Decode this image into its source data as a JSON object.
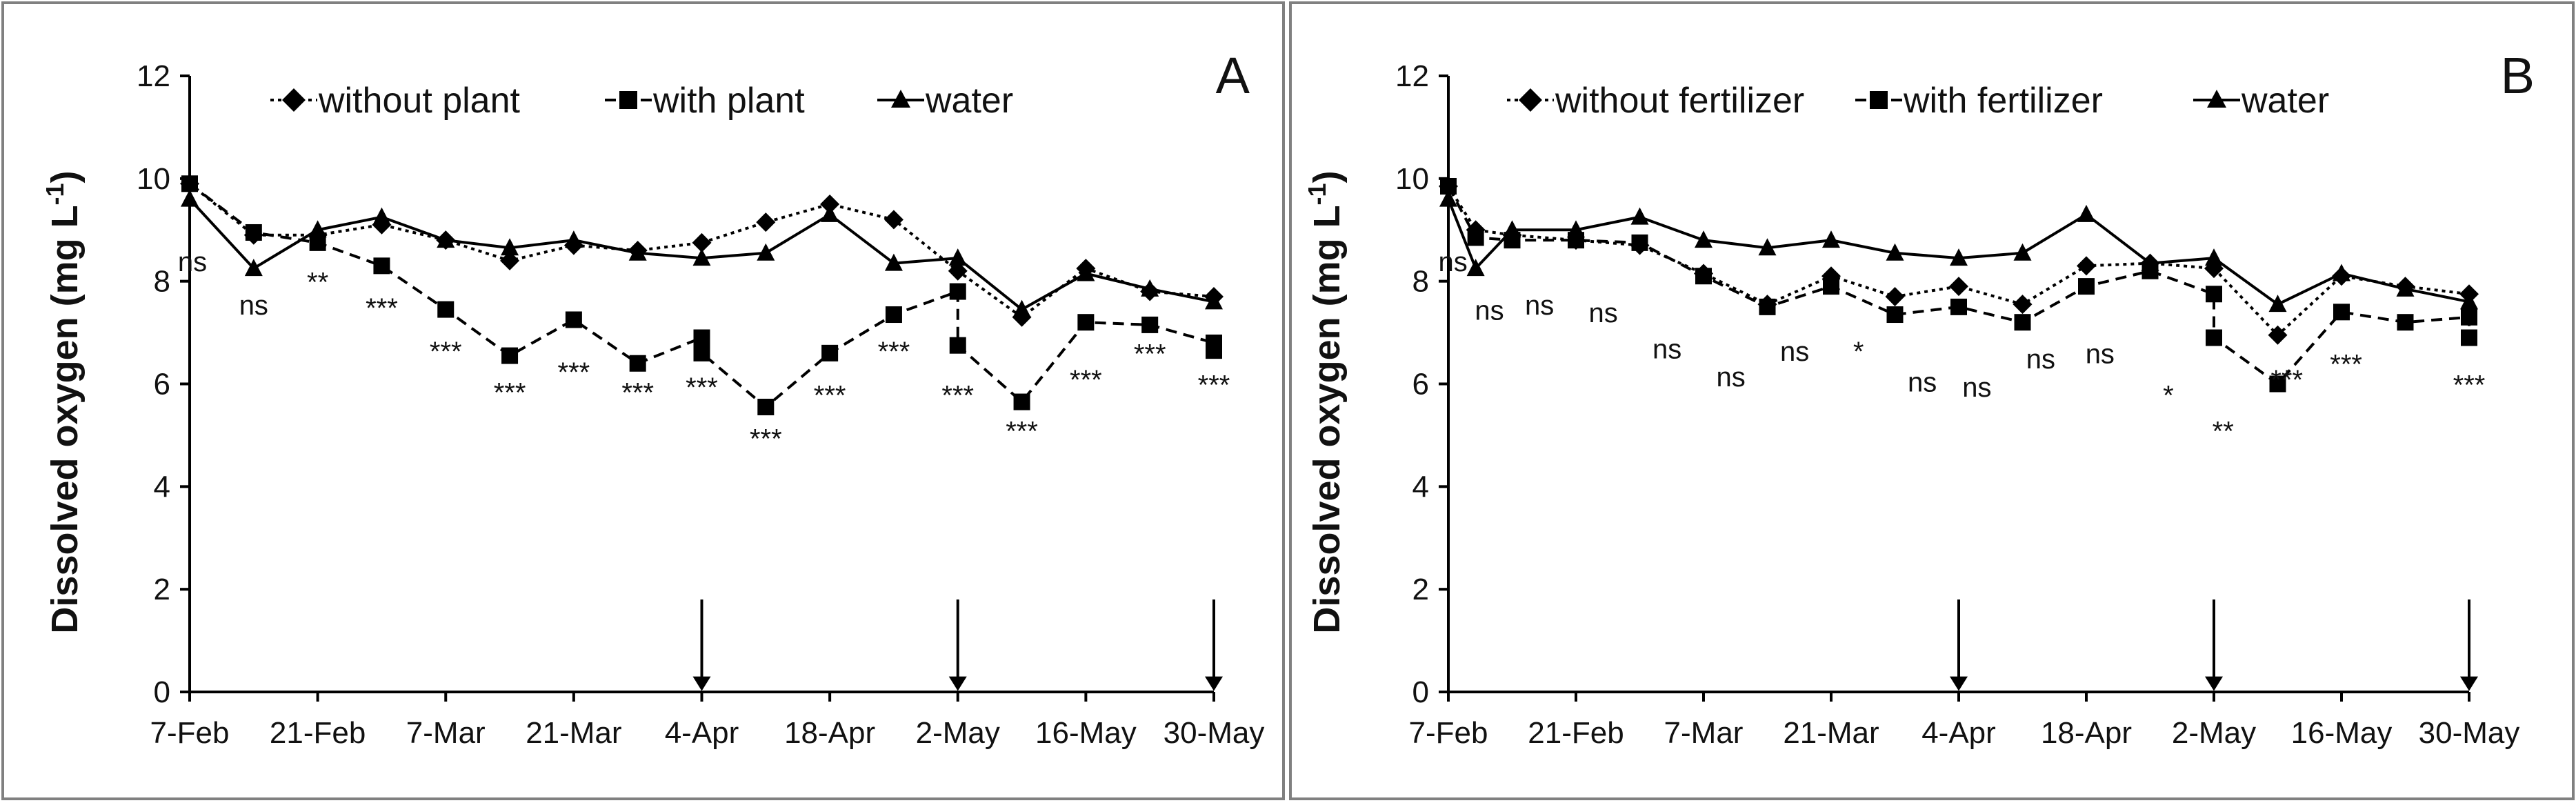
{
  "colors": {
    "line": "#000000",
    "frame": "#808080",
    "background": "#ffffff"
  },
  "chart_data": [
    {
      "type": "line",
      "panel": "A",
      "title": "",
      "ylabel": "Dissolved oxygen (mg L",
      "ylabel_sup": "-1",
      "ylabel_close": ")",
      "xlabel": "",
      "ylim": [
        0,
        12
      ],
      "yticks": [
        "0",
        "2",
        "4",
        "6",
        "8",
        "10",
        "12"
      ],
      "x_range": [
        0,
        112
      ],
      "xtick_labels": [
        "7-Feb",
        "21-Feb",
        "7-Mar",
        "21-Mar",
        "4-Apr",
        "18-Apr",
        "2-May",
        "16-May",
        "30-May"
      ],
      "xtick_days": [
        0,
        14,
        28,
        42,
        56,
        70,
        84,
        98,
        112
      ],
      "arrows_at_days": [
        56,
        84,
        112
      ],
      "legend": [
        "without plant",
        "with plant",
        "water"
      ],
      "legend_position": "top",
      "series": [
        {
          "name": "without plant",
          "marker": "diamond",
          "dash": "dotted",
          "x": [
            0,
            7,
            14,
            21,
            28,
            35,
            42,
            49,
            56,
            63,
            70,
            77,
            84,
            91,
            98,
            105,
            112
          ],
          "y": [
            9.9,
            8.9,
            8.9,
            9.1,
            8.8,
            8.4,
            8.7,
            8.6,
            8.75,
            9.15,
            9.5,
            9.2,
            8.2,
            7.3,
            8.25,
            7.8,
            7.7
          ]
        },
        {
          "name": "with plant",
          "marker": "square",
          "dash": "dashed",
          "x": [
            0,
            7,
            14,
            21,
            28,
            35,
            42,
            49,
            56,
            56,
            63,
            70,
            77,
            84,
            84,
            91,
            98,
            105,
            112,
            112
          ],
          "y": [
            9.9,
            8.95,
            8.75,
            8.3,
            7.45,
            6.55,
            7.25,
            6.4,
            6.9,
            6.6,
            5.55,
            6.6,
            7.35,
            7.8,
            6.75,
            5.65,
            7.2,
            7.15,
            6.8,
            6.65
          ]
        },
        {
          "name": "water",
          "marker": "triangle",
          "dash": "solid",
          "x": [
            0,
            7,
            14,
            21,
            28,
            35,
            42,
            49,
            56,
            63,
            70,
            77,
            84,
            91,
            98,
            105,
            112
          ],
          "y": [
            9.6,
            8.25,
            9.0,
            9.25,
            8.8,
            8.65,
            8.8,
            8.55,
            8.45,
            8.55,
            9.3,
            8.35,
            8.45,
            7.45,
            8.15,
            7.85,
            7.6
          ]
        }
      ],
      "annotations": [
        {
          "text": "ns",
          "x": 0.3,
          "y": 8.2
        },
        {
          "text": "ns",
          "x": 7,
          "y": 7.35
        },
        {
          "text": "**",
          "x": 14,
          "y": 7.8
        },
        {
          "text": "***",
          "x": 21,
          "y": 7.3
        },
        {
          "text": "***",
          "x": 28,
          "y": 6.45
        },
        {
          "text": "***",
          "x": 35,
          "y": 5.65
        },
        {
          "text": "***",
          "x": 42,
          "y": 6.05
        },
        {
          "text": "***",
          "x": 49,
          "y": 5.65
        },
        {
          "text": "***",
          "x": 56,
          "y": 5.75
        },
        {
          "text": "***",
          "x": 63,
          "y": 4.75
        },
        {
          "text": "***",
          "x": 70,
          "y": 5.6
        },
        {
          "text": "***",
          "x": 77,
          "y": 6.45
        },
        {
          "text": "***",
          "x": 84,
          "y": 5.6
        },
        {
          "text": "***",
          "x": 91,
          "y": 4.9
        },
        {
          "text": "***",
          "x": 98,
          "y": 5.9
        },
        {
          "text": "***",
          "x": 105,
          "y": 6.4
        },
        {
          "text": "***",
          "x": 112,
          "y": 5.8
        }
      ]
    },
    {
      "type": "line",
      "panel": "B",
      "title": "",
      "ylabel": "Dissolved oxygen (mg L",
      "ylabel_sup": "-1",
      "ylabel_close": ")",
      "xlabel": "",
      "ylim": [
        0,
        12
      ],
      "yticks": [
        "0",
        "2",
        "4",
        "6",
        "8",
        "10",
        "12"
      ],
      "x_range": [
        0,
        112
      ],
      "xtick_labels": [
        "7-Feb",
        "21-Feb",
        "7-Mar",
        "21-Mar",
        "4-Apr",
        "18-Apr",
        "2-May",
        "16-May",
        "30-May"
      ],
      "xtick_days": [
        0,
        14,
        28,
        42,
        56,
        70,
        84,
        98,
        112
      ],
      "arrows_at_days": [
        56,
        84,
        112
      ],
      "legend": [
        "without fertilizer",
        "with fertilizer",
        "water"
      ],
      "legend_position": "top",
      "series": [
        {
          "name": "without fertilizer",
          "marker": "diamond",
          "dash": "dotted",
          "x": [
            0,
            3,
            7,
            14,
            21,
            28,
            35,
            42,
            49,
            56,
            63,
            70,
            77,
            84,
            91,
            98,
            105,
            112
          ],
          "y": [
            9.85,
            9.0,
            8.9,
            8.8,
            8.7,
            8.15,
            7.55,
            8.1,
            7.7,
            7.9,
            7.55,
            8.3,
            8.35,
            8.25,
            6.95,
            8.1,
            7.9,
            7.75
          ]
        },
        {
          "name": "with fertilizer",
          "marker": "square",
          "dash": "dashed",
          "x": [
            0,
            3,
            7,
            14,
            21,
            28,
            35,
            42,
            49,
            56,
            63,
            70,
            77,
            84,
            84,
            91,
            98,
            105,
            112,
            112
          ],
          "y": [
            9.85,
            8.85,
            8.8,
            8.8,
            8.75,
            8.1,
            7.5,
            7.9,
            7.35,
            7.5,
            7.2,
            7.9,
            8.2,
            7.75,
            6.9,
            6.0,
            7.4,
            7.2,
            7.3,
            6.9
          ]
        },
        {
          "name": "water",
          "marker": "triangle",
          "dash": "solid",
          "x": [
            0,
            3,
            7,
            14,
            21,
            28,
            35,
            42,
            49,
            56,
            63,
            70,
            77,
            84,
            91,
            98,
            105,
            112
          ],
          "y": [
            9.6,
            8.25,
            9.0,
            9.0,
            9.25,
            8.8,
            8.65,
            8.8,
            8.55,
            8.45,
            8.55,
            9.3,
            8.35,
            8.45,
            7.55,
            8.15,
            7.85,
            7.6
          ]
        }
      ],
      "annotations": [
        {
          "text": "ns",
          "x": 0.5,
          "y": 8.2
        },
        {
          "text": "ns",
          "x": 4.5,
          "y": 7.25
        },
        {
          "text": "ns",
          "x": 10,
          "y": 7.35
        },
        {
          "text": "ns",
          "x": 17,
          "y": 7.2
        },
        {
          "text": "ns",
          "x": 24,
          "y": 6.5
        },
        {
          "text": "ns",
          "x": 31,
          "y": 5.95
        },
        {
          "text": "ns",
          "x": 38,
          "y": 6.45
        },
        {
          "text": "*",
          "x": 45,
          "y": 6.45
        },
        {
          "text": "ns",
          "x": 52,
          "y": 5.85
        },
        {
          "text": "ns",
          "x": 58,
          "y": 5.75
        },
        {
          "text": "ns",
          "x": 65,
          "y": 6.3
        },
        {
          "text": "ns",
          "x": 71.5,
          "y": 6.4
        },
        {
          "text": "*",
          "x": 79,
          "y": 5.6
        },
        {
          "text": "**",
          "x": 85,
          "y": 4.9
        },
        {
          "text": "***",
          "x": 92,
          "y": 5.9
        },
        {
          "text": "***",
          "x": 98.5,
          "y": 6.2
        },
        {
          "text": "***",
          "x": 112,
          "y": 5.8
        }
      ]
    }
  ]
}
